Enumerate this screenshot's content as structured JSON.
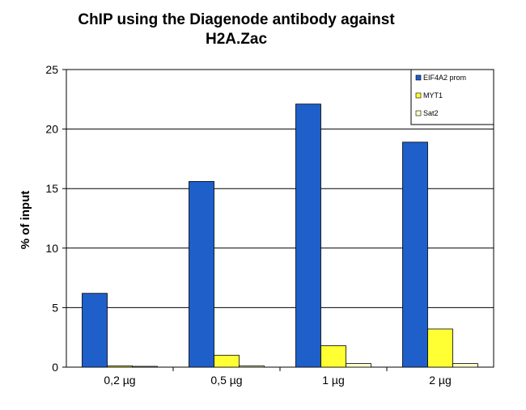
{
  "chart_data": {
    "type": "bar",
    "title": "ChIP using the Diagenode antibody against",
    "subtitle": "H2A.Zac",
    "xlabel": "",
    "ylabel": "% of input",
    "ylim": [
      0,
      25
    ],
    "yticks": [
      0,
      5,
      10,
      15,
      20,
      25
    ],
    "categories": [
      "0,2 µg",
      "0,5 µg",
      "1 µg",
      "2 µg"
    ],
    "series": [
      {
        "name": "EIF4A2 prom",
        "values": [
          6.2,
          15.6,
          22.1,
          18.9
        ],
        "color": "#1f5fc9"
      },
      {
        "name": "MYT1",
        "values": [
          0.1,
          1.0,
          1.8,
          3.2
        ],
        "color": "#ffff33"
      },
      {
        "name": "Sat2",
        "values": [
          0.05,
          0.1,
          0.3,
          0.3
        ],
        "color": "#ffffcc"
      }
    ],
    "grid": true,
    "legend_position": "top-right"
  }
}
